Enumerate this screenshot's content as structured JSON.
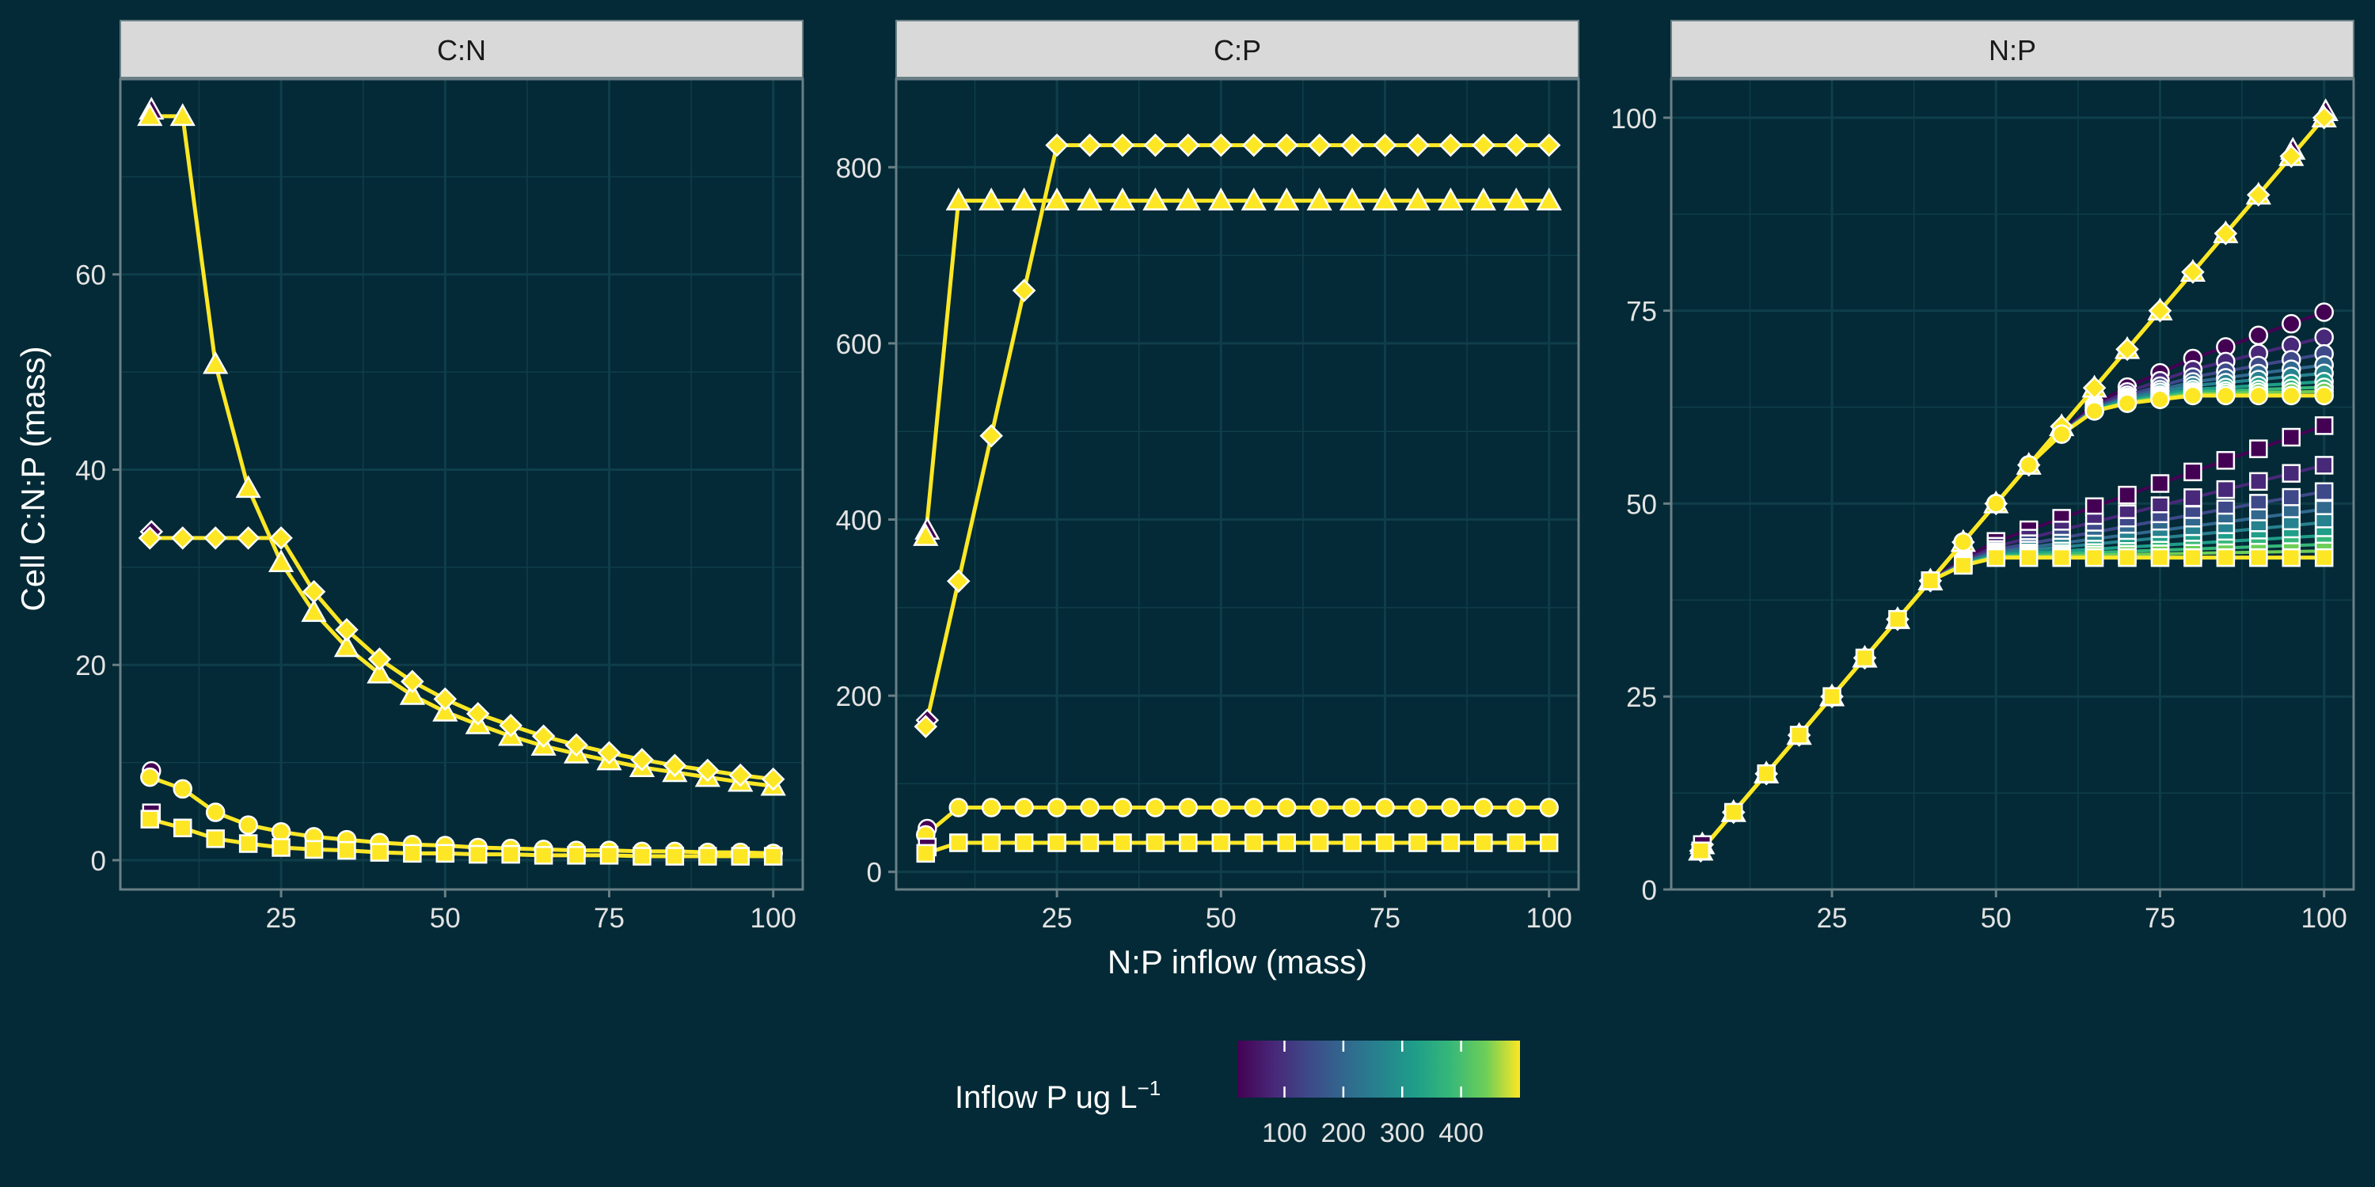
{
  "chart_data": {
    "type": "line",
    "xlabel": "N:P inflow (mass)",
    "ylabel": "Cell C:N:P (mass)",
    "x": [
      5,
      10,
      15,
      20,
      25,
      30,
      35,
      40,
      45,
      50,
      55,
      60,
      65,
      70,
      75,
      80,
      85,
      90,
      95,
      100
    ],
    "x_ticks": [
      "25",
      "50",
      "75",
      "100"
    ],
    "colors": {
      "background": "#032a36",
      "panel_border": "#6a7f86",
      "strip_fill": "#d9d9d9",
      "grid": "#0f3e4a",
      "text": "#ffffff",
      "axis_text": "#e3e3e3",
      "point_stroke": "#ffffff"
    },
    "legend": {
      "title": "Inflow P ug L",
      "title_sup": "−1",
      "ticks": [
        "100",
        "200",
        "300",
        "400"
      ],
      "colormap": "viridis",
      "position": "bottom"
    },
    "panels": [
      {
        "strip": "C:N",
        "ylim": [
          -3,
          80
        ],
        "y_ticks": [
          "0",
          "20",
          "40",
          "60"
        ],
        "series": [
          {
            "marker": "triangle",
            "values": [
              76.2,
              76.2,
              50.8,
              38.1,
              30.5,
              25.4,
              21.8,
              19.1,
              16.9,
              15.2,
              13.9,
              12.7,
              11.7,
              10.9,
              10.2,
              9.5,
              9.0,
              8.5,
              8.0,
              7.6
            ]
          },
          {
            "marker": "diamond",
            "values": [
              33.0,
              33.0,
              33.0,
              33.0,
              33.0,
              27.5,
              23.6,
              20.6,
              18.3,
              16.5,
              15.0,
              13.8,
              12.7,
              11.8,
              11.0,
              10.3,
              9.7,
              9.2,
              8.7,
              8.3
            ]
          },
          {
            "marker": "circle",
            "values": [
              8.5,
              7.3,
              4.9,
              3.6,
              2.9,
              2.4,
              2.1,
              1.8,
              1.6,
              1.5,
              1.3,
              1.2,
              1.1,
              1.0,
              1.0,
              0.9,
              0.9,
              0.8,
              0.8,
              0.7
            ]
          },
          {
            "marker": "square",
            "values": [
              4.2,
              3.3,
              2.2,
              1.7,
              1.3,
              1.1,
              1.0,
              0.8,
              0.7,
              0.7,
              0.6,
              0.6,
              0.5,
              0.5,
              0.5,
              0.4,
              0.4,
              0.4,
              0.4,
              0.4
            ]
          }
        ]
      },
      {
        "strip": "C:P",
        "ylim": [
          -20,
          900
        ],
        "y_ticks": [
          "0",
          "200",
          "400",
          "600",
          "800"
        ],
        "series": [
          {
            "marker": "diamond",
            "values": [
              165,
              330,
              495,
              660,
              825,
              825,
              825,
              825,
              825,
              825,
              825,
              825,
              825,
              825,
              825,
              825,
              825,
              825,
              825,
              825
            ]
          },
          {
            "marker": "triangle",
            "values": [
              381,
              762,
              762,
              762,
              762,
              762,
              762,
              762,
              762,
              762,
              762,
              762,
              762,
              762,
              762,
              762,
              762,
              762,
              762,
              762
            ]
          },
          {
            "marker": "circle",
            "values": [
              42,
              73,
              73,
              73,
              73,
              73,
              73,
              73,
              73,
              73,
              73,
              73,
              73,
              73,
              73,
              73,
              73,
              73,
              73,
              73
            ]
          },
          {
            "marker": "square",
            "values": [
              21,
              33,
              33,
              33,
              33,
              33,
              33,
              33,
              33,
              33,
              33,
              33,
              33,
              33,
              33,
              33,
              33,
              33,
              33,
              33
            ]
          }
        ]
      },
      {
        "strip": "N:P",
        "ylim": [
          0,
          105
        ],
        "y_ticks": [
          "0",
          "25",
          "50",
          "75",
          "100"
        ],
        "series": [
          {
            "marker": "triangle",
            "values": [
              5,
              10,
              15,
              20,
              25,
              30,
              35,
              40,
              45,
              50,
              55,
              60,
              65,
              70,
              75,
              80,
              85,
              90,
              95,
              100
            ]
          },
          {
            "marker": "diamond",
            "values": [
              5,
              10,
              15,
              20,
              25,
              30,
              35,
              40,
              45,
              50,
              55,
              60,
              65,
              70,
              75,
              80,
              85,
              90,
              95,
              100
            ]
          },
          {
            "marker": "circle",
            "values": [
              5,
              10,
              15,
              20,
              25,
              30,
              35,
              40,
              45,
              50,
              55,
              59,
              62,
              63,
              63.5,
              64,
              64,
              64,
              64,
              64
            ]
          },
          {
            "marker": "square",
            "values": [
              5,
              10,
              15,
              20,
              25,
              30,
              35,
              40,
              42,
              43,
              43,
              43,
              43,
              43,
              43,
              43,
              43,
              43,
              43,
              43
            ]
          }
        ]
      }
    ]
  }
}
